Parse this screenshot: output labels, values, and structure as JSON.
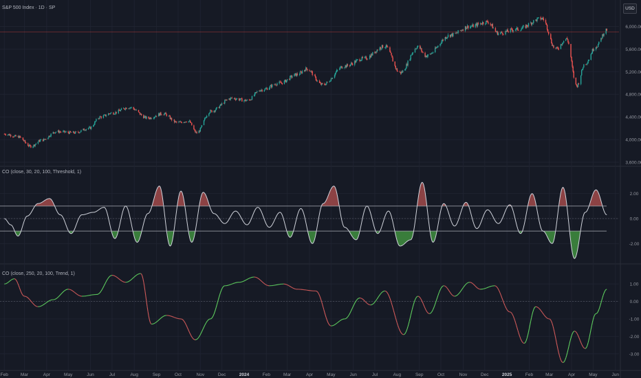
{
  "header": {
    "symbol_label": "S&P 500 Index · 1D · SP",
    "currency": "USD"
  },
  "colors": {
    "background": "#161a25",
    "up": "#26a69a",
    "down": "#ef5350",
    "osc_line": "#d1d4dc",
    "fill_up": "#a14a4a",
    "fill_down": "#3f8f3f",
    "trend_up": "#5fcf5f",
    "trend_down": "#d05a5a",
    "ref_line": "#e04040"
  },
  "chart_data": [
    {
      "type": "candlestick",
      "title": "S&P 500 Index · 1D · SP",
      "ylim": [
        3600,
        6200
      ],
      "y_ticks": [
        "6,000.00",
        "5,600.00",
        "5,200.00",
        "4,800.00",
        "4,400.00",
        "4,000.00",
        "3,600.00"
      ],
      "y_tick_values": [
        6000,
        5600,
        5200,
        4800,
        4400,
        4000,
        3600
      ],
      "x_ticks": [
        "Feb",
        "Mar",
        "Apr",
        "May",
        "Jun",
        "Jul",
        "Aug",
        "Sep",
        "Oct",
        "Nov",
        "Dec",
        "2024",
        "Feb",
        "Mar",
        "Apr",
        "May",
        "Jun",
        "Jul",
        "Aug",
        "Sep",
        "Oct",
        "Nov",
        "Dec",
        "2025",
        "Feb",
        "Mar",
        "Apr",
        "May",
        "Jun"
      ],
      "bold_ticks": [
        "2024",
        "2025"
      ],
      "reference_level": 5900,
      "close_series": [
        {
          "date": "2023-02-01",
          "close": 4100
        },
        {
          "date": "2023-02-20",
          "close": 4050
        },
        {
          "date": "2023-03-10",
          "close": 3880
        },
        {
          "date": "2023-03-25",
          "close": 3990
        },
        {
          "date": "2023-04-15",
          "close": 4140
        },
        {
          "date": "2023-05-10",
          "close": 4120
        },
        {
          "date": "2023-05-30",
          "close": 4200
        },
        {
          "date": "2023-06-15",
          "close": 4400
        },
        {
          "date": "2023-07-01",
          "close": 4470
        },
        {
          "date": "2023-07-25",
          "close": 4570
        },
        {
          "date": "2023-08-20",
          "close": 4380
        },
        {
          "date": "2023-09-10",
          "close": 4460
        },
        {
          "date": "2023-09-30",
          "close": 4300
        },
        {
          "date": "2023-10-15",
          "close": 4330
        },
        {
          "date": "2023-10-27",
          "close": 4120
        },
        {
          "date": "2023-11-15",
          "close": 4500
        },
        {
          "date": "2023-12-15",
          "close": 4730
        },
        {
          "date": "2024-01-05",
          "close": 4690
        },
        {
          "date": "2024-01-25",
          "close": 4880
        },
        {
          "date": "2024-02-20",
          "close": 5000
        },
        {
          "date": "2024-03-15",
          "close": 5150
        },
        {
          "date": "2024-03-28",
          "close": 5250
        },
        {
          "date": "2024-04-19",
          "close": 4970
        },
        {
          "date": "2024-05-20",
          "close": 5300
        },
        {
          "date": "2024-06-15",
          "close": 5430
        },
        {
          "date": "2024-07-15",
          "close": 5650
        },
        {
          "date": "2024-08-05",
          "close": 5180
        },
        {
          "date": "2024-08-30",
          "close": 5640
        },
        {
          "date": "2024-09-10",
          "close": 5480
        },
        {
          "date": "2024-10-15",
          "close": 5850
        },
        {
          "date": "2024-11-10",
          "close": 6000
        },
        {
          "date": "2024-12-05",
          "close": 6080
        },
        {
          "date": "2024-12-20",
          "close": 5880
        },
        {
          "date": "2025-01-15",
          "close": 5950
        },
        {
          "date": "2025-02-19",
          "close": 6140
        },
        {
          "date": "2025-03-10",
          "close": 5600
        },
        {
          "date": "2025-03-25",
          "close": 5780
        },
        {
          "date": "2025-04-08",
          "close": 4950
        },
        {
          "date": "2025-04-20",
          "close": 5350
        },
        {
          "date": "2025-05-05",
          "close": 5650
        },
        {
          "date": "2025-05-20",
          "close": 5940
        }
      ]
    },
    {
      "type": "line",
      "title": "CO (close, 30, 20, 100, Threshold, 1)",
      "ylim": [
        -3.3,
        3.3
      ],
      "y_ticks": [
        "2.00",
        "0.00",
        "-2.00"
      ],
      "y_tick_values": [
        2,
        0,
        -2
      ],
      "thresholds": [
        1,
        -1
      ],
      "series": [
        {
          "date": "2023-02-01",
          "value": 0.0
        },
        {
          "date": "2023-02-10",
          "value": -0.5
        },
        {
          "date": "2023-02-20",
          "value": -1.4
        },
        {
          "date": "2023-03-05",
          "value": 0.2
        },
        {
          "date": "2023-03-20",
          "value": 1.2
        },
        {
          "date": "2023-04-05",
          "value": 1.6
        },
        {
          "date": "2023-04-20",
          "value": 0.3
        },
        {
          "date": "2023-05-05",
          "value": -1.2
        },
        {
          "date": "2023-05-20",
          "value": 0.3
        },
        {
          "date": "2023-06-05",
          "value": 0.5
        },
        {
          "date": "2023-06-20",
          "value": 0.9
        },
        {
          "date": "2023-07-05",
          "value": -1.6
        },
        {
          "date": "2023-07-20",
          "value": 1.0
        },
        {
          "date": "2023-08-05",
          "value": -1.9
        },
        {
          "date": "2023-08-20",
          "value": 0.4
        },
        {
          "date": "2023-09-05",
          "value": 2.6
        },
        {
          "date": "2023-09-20",
          "value": -2.2
        },
        {
          "date": "2023-10-05",
          "value": 2.2
        },
        {
          "date": "2023-10-20",
          "value": -1.9
        },
        {
          "date": "2023-11-05",
          "value": 2.1
        },
        {
          "date": "2023-11-20",
          "value": 0.4
        },
        {
          "date": "2023-12-05",
          "value": -0.4
        },
        {
          "date": "2023-12-20",
          "value": 0.6
        },
        {
          "date": "2024-01-05",
          "value": -0.5
        },
        {
          "date": "2024-01-20",
          "value": 0.9
        },
        {
          "date": "2024-02-05",
          "value": -0.7
        },
        {
          "date": "2024-02-20",
          "value": 0.5
        },
        {
          "date": "2024-03-05",
          "value": -1.5
        },
        {
          "date": "2024-03-20",
          "value": 0.8
        },
        {
          "date": "2024-04-05",
          "value": -2.0
        },
        {
          "date": "2024-04-20",
          "value": 1.2
        },
        {
          "date": "2024-05-05",
          "value": 2.6
        },
        {
          "date": "2024-05-20",
          "value": -0.7
        },
        {
          "date": "2024-06-05",
          "value": -1.7
        },
        {
          "date": "2024-06-20",
          "value": 1.0
        },
        {
          "date": "2024-07-05",
          "value": -1.2
        },
        {
          "date": "2024-07-20",
          "value": 0.6
        },
        {
          "date": "2024-08-05",
          "value": -2.2
        },
        {
          "date": "2024-08-20",
          "value": -1.7
        },
        {
          "date": "2024-09-05",
          "value": 2.9
        },
        {
          "date": "2024-09-20",
          "value": -1.9
        },
        {
          "date": "2024-10-05",
          "value": 1.2
        },
        {
          "date": "2024-10-20",
          "value": -0.6
        },
        {
          "date": "2024-11-05",
          "value": 1.3
        },
        {
          "date": "2024-11-20",
          "value": -0.8
        },
        {
          "date": "2024-12-05",
          "value": 0.7
        },
        {
          "date": "2024-12-20",
          "value": -0.4
        },
        {
          "date": "2025-01-05",
          "value": 1.1
        },
        {
          "date": "2025-01-20",
          "value": -1.2
        },
        {
          "date": "2025-02-05",
          "value": 2.0
        },
        {
          "date": "2025-02-20",
          "value": -1.0
        },
        {
          "date": "2025-03-05",
          "value": -2.0
        },
        {
          "date": "2025-03-20",
          "value": 2.5
        },
        {
          "date": "2025-04-05",
          "value": -3.2
        },
        {
          "date": "2025-04-20",
          "value": 0.5
        },
        {
          "date": "2025-05-05",
          "value": 2.3
        },
        {
          "date": "2025-05-20",
          "value": 0.3
        }
      ]
    },
    {
      "type": "line",
      "title": "CO (close, 250, 20, 100, Trend, 1)",
      "ylim": [
        -3.6,
        1.6
      ],
      "y_ticks": [
        "1.00",
        "0.00",
        "-1.00",
        "-2.00",
        "-3.00"
      ],
      "y_tick_values": [
        1,
        0,
        -1,
        -2,
        -3
      ],
      "series": [
        {
          "date": "2023-02-01",
          "value": 1.0
        },
        {
          "date": "2023-02-15",
          "value": 1.3
        },
        {
          "date": "2023-03-01",
          "value": 0.3
        },
        {
          "date": "2023-03-20",
          "value": -0.3
        },
        {
          "date": "2023-04-10",
          "value": 0.1
        },
        {
          "date": "2023-05-01",
          "value": 0.7
        },
        {
          "date": "2023-05-20",
          "value": 0.3
        },
        {
          "date": "2023-06-10",
          "value": 0.4
        },
        {
          "date": "2023-07-01",
          "value": 1.5
        },
        {
          "date": "2023-07-20",
          "value": 1.1
        },
        {
          "date": "2023-08-10",
          "value": 1.6
        },
        {
          "date": "2023-08-25",
          "value": -1.3
        },
        {
          "date": "2023-09-15",
          "value": -0.8
        },
        {
          "date": "2023-10-05",
          "value": -1.0
        },
        {
          "date": "2023-10-25",
          "value": -2.2
        },
        {
          "date": "2023-11-15",
          "value": -1.0
        },
        {
          "date": "2023-12-05",
          "value": 0.9
        },
        {
          "date": "2023-12-25",
          "value": 1.1
        },
        {
          "date": "2024-01-15",
          "value": 1.4
        },
        {
          "date": "2024-02-05",
          "value": 0.9
        },
        {
          "date": "2024-02-25",
          "value": 1.0
        },
        {
          "date": "2024-03-15",
          "value": 0.7
        },
        {
          "date": "2024-04-10",
          "value": 0.6
        },
        {
          "date": "2024-05-01",
          "value": -1.4
        },
        {
          "date": "2024-05-20",
          "value": -1.0
        },
        {
          "date": "2024-06-10",
          "value": 0.2
        },
        {
          "date": "2024-06-25",
          "value": -0.2
        },
        {
          "date": "2024-07-15",
          "value": 0.6
        },
        {
          "date": "2024-08-10",
          "value": -1.9
        },
        {
          "date": "2024-08-30",
          "value": 0.3
        },
        {
          "date": "2024-09-15",
          "value": -0.7
        },
        {
          "date": "2024-10-05",
          "value": 0.9
        },
        {
          "date": "2024-10-20",
          "value": 0.3
        },
        {
          "date": "2024-11-10",
          "value": 1.1
        },
        {
          "date": "2024-11-25",
          "value": 0.7
        },
        {
          "date": "2024-12-15",
          "value": 0.9
        },
        {
          "date": "2025-01-05",
          "value": -0.6
        },
        {
          "date": "2025-01-25",
          "value": -2.4
        },
        {
          "date": "2025-02-10",
          "value": -0.3
        },
        {
          "date": "2025-03-01",
          "value": -1.0
        },
        {
          "date": "2025-03-20",
          "value": -3.5
        },
        {
          "date": "2025-04-05",
          "value": -1.7
        },
        {
          "date": "2025-04-20",
          "value": -2.7
        },
        {
          "date": "2025-05-05",
          "value": -0.7
        },
        {
          "date": "2025-05-20",
          "value": 0.7
        }
      ]
    }
  ]
}
